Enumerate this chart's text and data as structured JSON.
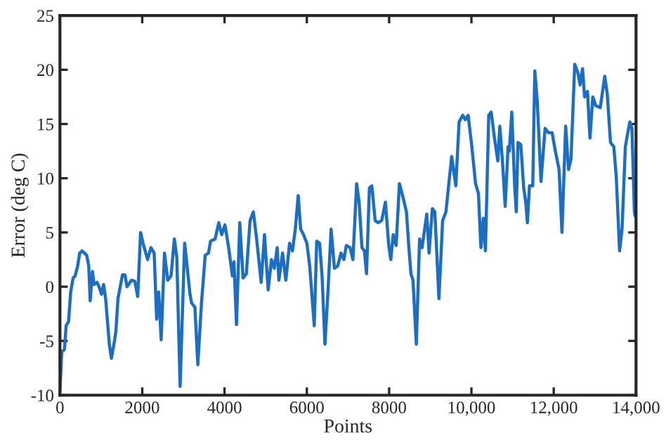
{
  "chart_data": {
    "type": "line",
    "xlabel": "Points",
    "ylabel": "Error (deg C)",
    "xlim": [
      0,
      14000
    ],
    "ylim": [
      -10,
      25
    ],
    "xticks": [
      0,
      2000,
      4000,
      6000,
      8000,
      {
        "value": 10000,
        "label": "10,000"
      },
      {
        "value": 12000,
        "label": "12,000"
      },
      {
        "value": 14000,
        "label": "14,000"
      }
    ],
    "yticks": [
      -10,
      -5,
      0,
      5,
      10,
      15,
      20,
      25
    ],
    "grid": false,
    "legend": false,
    "series": [
      {
        "color": "#1b6ec2",
        "x": [
          0,
          44,
          110,
          150,
          210,
          260,
          320,
          370,
          430,
          480,
          540,
          650,
          700,
          735,
          790,
          830,
          900,
          950,
          1010,
          1060,
          1110,
          1200,
          1250,
          1330,
          1360,
          1410,
          1520,
          1580,
          1630,
          1740,
          1820,
          1890,
          1960,
          2020,
          2130,
          2210,
          2290,
          2350,
          2400,
          2460,
          2540,
          2620,
          2700,
          2780,
          2840,
          2920,
          3030,
          3090,
          3160,
          3200,
          3280,
          3350,
          3440,
          3530,
          3610,
          3660,
          3770,
          3860,
          3930,
          4010,
          4100,
          4190,
          4230,
          4290,
          4370,
          4450,
          4530,
          4620,
          4700,
          4780,
          4890,
          4970,
          5060,
          5140,
          5210,
          5280,
          5320,
          5410,
          5490,
          5580,
          5650,
          5720,
          5790,
          5850,
          5920,
          6000,
          6070,
          6180,
          6240,
          6310,
          6370,
          6440,
          6510,
          6590,
          6670,
          6750,
          6830,
          6900,
          6960,
          7050,
          7120,
          7210,
          7270,
          7340,
          7400,
          7450,
          7520,
          7580,
          7660,
          7730,
          7820,
          7910,
          7990,
          8040,
          8100,
          8170,
          8250,
          8340,
          8420,
          8480,
          8530,
          8580,
          8660,
          8740,
          8800,
          8915,
          8970,
          9050,
          9110,
          9210,
          9300,
          9380,
          9440,
          9520,
          9620,
          9700,
          9790,
          9850,
          9920,
          10010,
          10100,
          10170,
          10230,
          10290,
          10340,
          10420,
          10480,
          10560,
          10640,
          10690,
          10760,
          10820,
          10890,
          10920,
          10980,
          11050,
          11090,
          11130,
          11200,
          11270,
          11320,
          11360,
          11410,
          11490,
          11540,
          11600,
          11690,
          11790,
          11870,
          11960,
          12040,
          12130,
          12200,
          12290,
          12360,
          12420,
          12510,
          12590,
          12640,
          12700,
          12750,
          12820,
          12880,
          12950,
          13020,
          13130,
          13240,
          13300,
          13380,
          13460,
          13520,
          13600,
          13660,
          13740,
          13800,
          13850,
          13900,
          13960,
          13980
        ],
        "values": [
          -9.6,
          -6,
          -5.8,
          -3.6,
          -3.2,
          -0.5,
          0.8,
          1,
          1.9,
          3.1,
          3.3,
          2.9,
          1.9,
          -1.3,
          1.4,
          0.2,
          0.4,
          0,
          -0.7,
          0.2,
          -1.1,
          -5.3,
          -6.6,
          -4.9,
          -4.1,
          -1.1,
          1.1,
          1.1,
          0,
          0.6,
          0.5,
          -0.9,
          5,
          4,
          2.5,
          3.6,
          3.1,
          -3,
          -0.5,
          -4.9,
          3.1,
          0.6,
          1,
          4.4,
          2.7,
          -9.2,
          4,
          1.9,
          -0.7,
          -1.5,
          -1.9,
          -7.2,
          -1.5,
          2.9,
          3.1,
          4.2,
          4.4,
          5.9,
          4.8,
          5.7,
          3.6,
          1,
          2.3,
          -3.5,
          5.9,
          0.8,
          1.2,
          6.1,
          6.9,
          4.4,
          0.4,
          4.8,
          -0.3,
          2.5,
          1.7,
          3.6,
          0.6,
          3.1,
          0.6,
          4,
          3.3,
          5.3,
          8.4,
          5.3,
          4.8,
          4,
          1.9,
          -3.6,
          4.2,
          4,
          1,
          -5.3,
          -0.7,
          5.3,
          1.7,
          1.9,
          3.1,
          2.5,
          3.8,
          3.6,
          2.5,
          9.5,
          7.8,
          3.6,
          3.3,
          1.2,
          9.1,
          9.3,
          6.1,
          5.9,
          6.1,
          7.8,
          3.8,
          2.5,
          4.8,
          3.8,
          9.5,
          8.2,
          6.9,
          3.6,
          1.2,
          0.6,
          -5.3,
          4.4,
          3.6,
          6.7,
          3.1,
          7.2,
          6.9,
          -1.1,
          6.1,
          6.9,
          9.1,
          12,
          9.3,
          15.2,
          15.8,
          15.4,
          15.8,
          12.9,
          9.5,
          8.6,
          3.6,
          6.3,
          3.3,
          15.8,
          16.1,
          13.7,
          11.6,
          14.8,
          11.2,
          7.4,
          12.9,
          12.5,
          16.1,
          9.3,
          6.9,
          13.3,
          13.1,
          9.1,
          7.8,
          5.9,
          9.3,
          9.3,
          19.9,
          17.1,
          9.7,
          14.6,
          14.2,
          14.2,
          12.5,
          10.8,
          5,
          14.8,
          10.8,
          11.8,
          20.5,
          19.7,
          18.6,
          20.1,
          17.5,
          18,
          13.7,
          17.5,
          16.7,
          16.5,
          19.4,
          17.8,
          13.3,
          12.9,
          10.1,
          3.3,
          5.3,
          12.9,
          14.2,
          15.2,
          14.6,
          6.9,
          6.5
        ]
      }
    ]
  }
}
